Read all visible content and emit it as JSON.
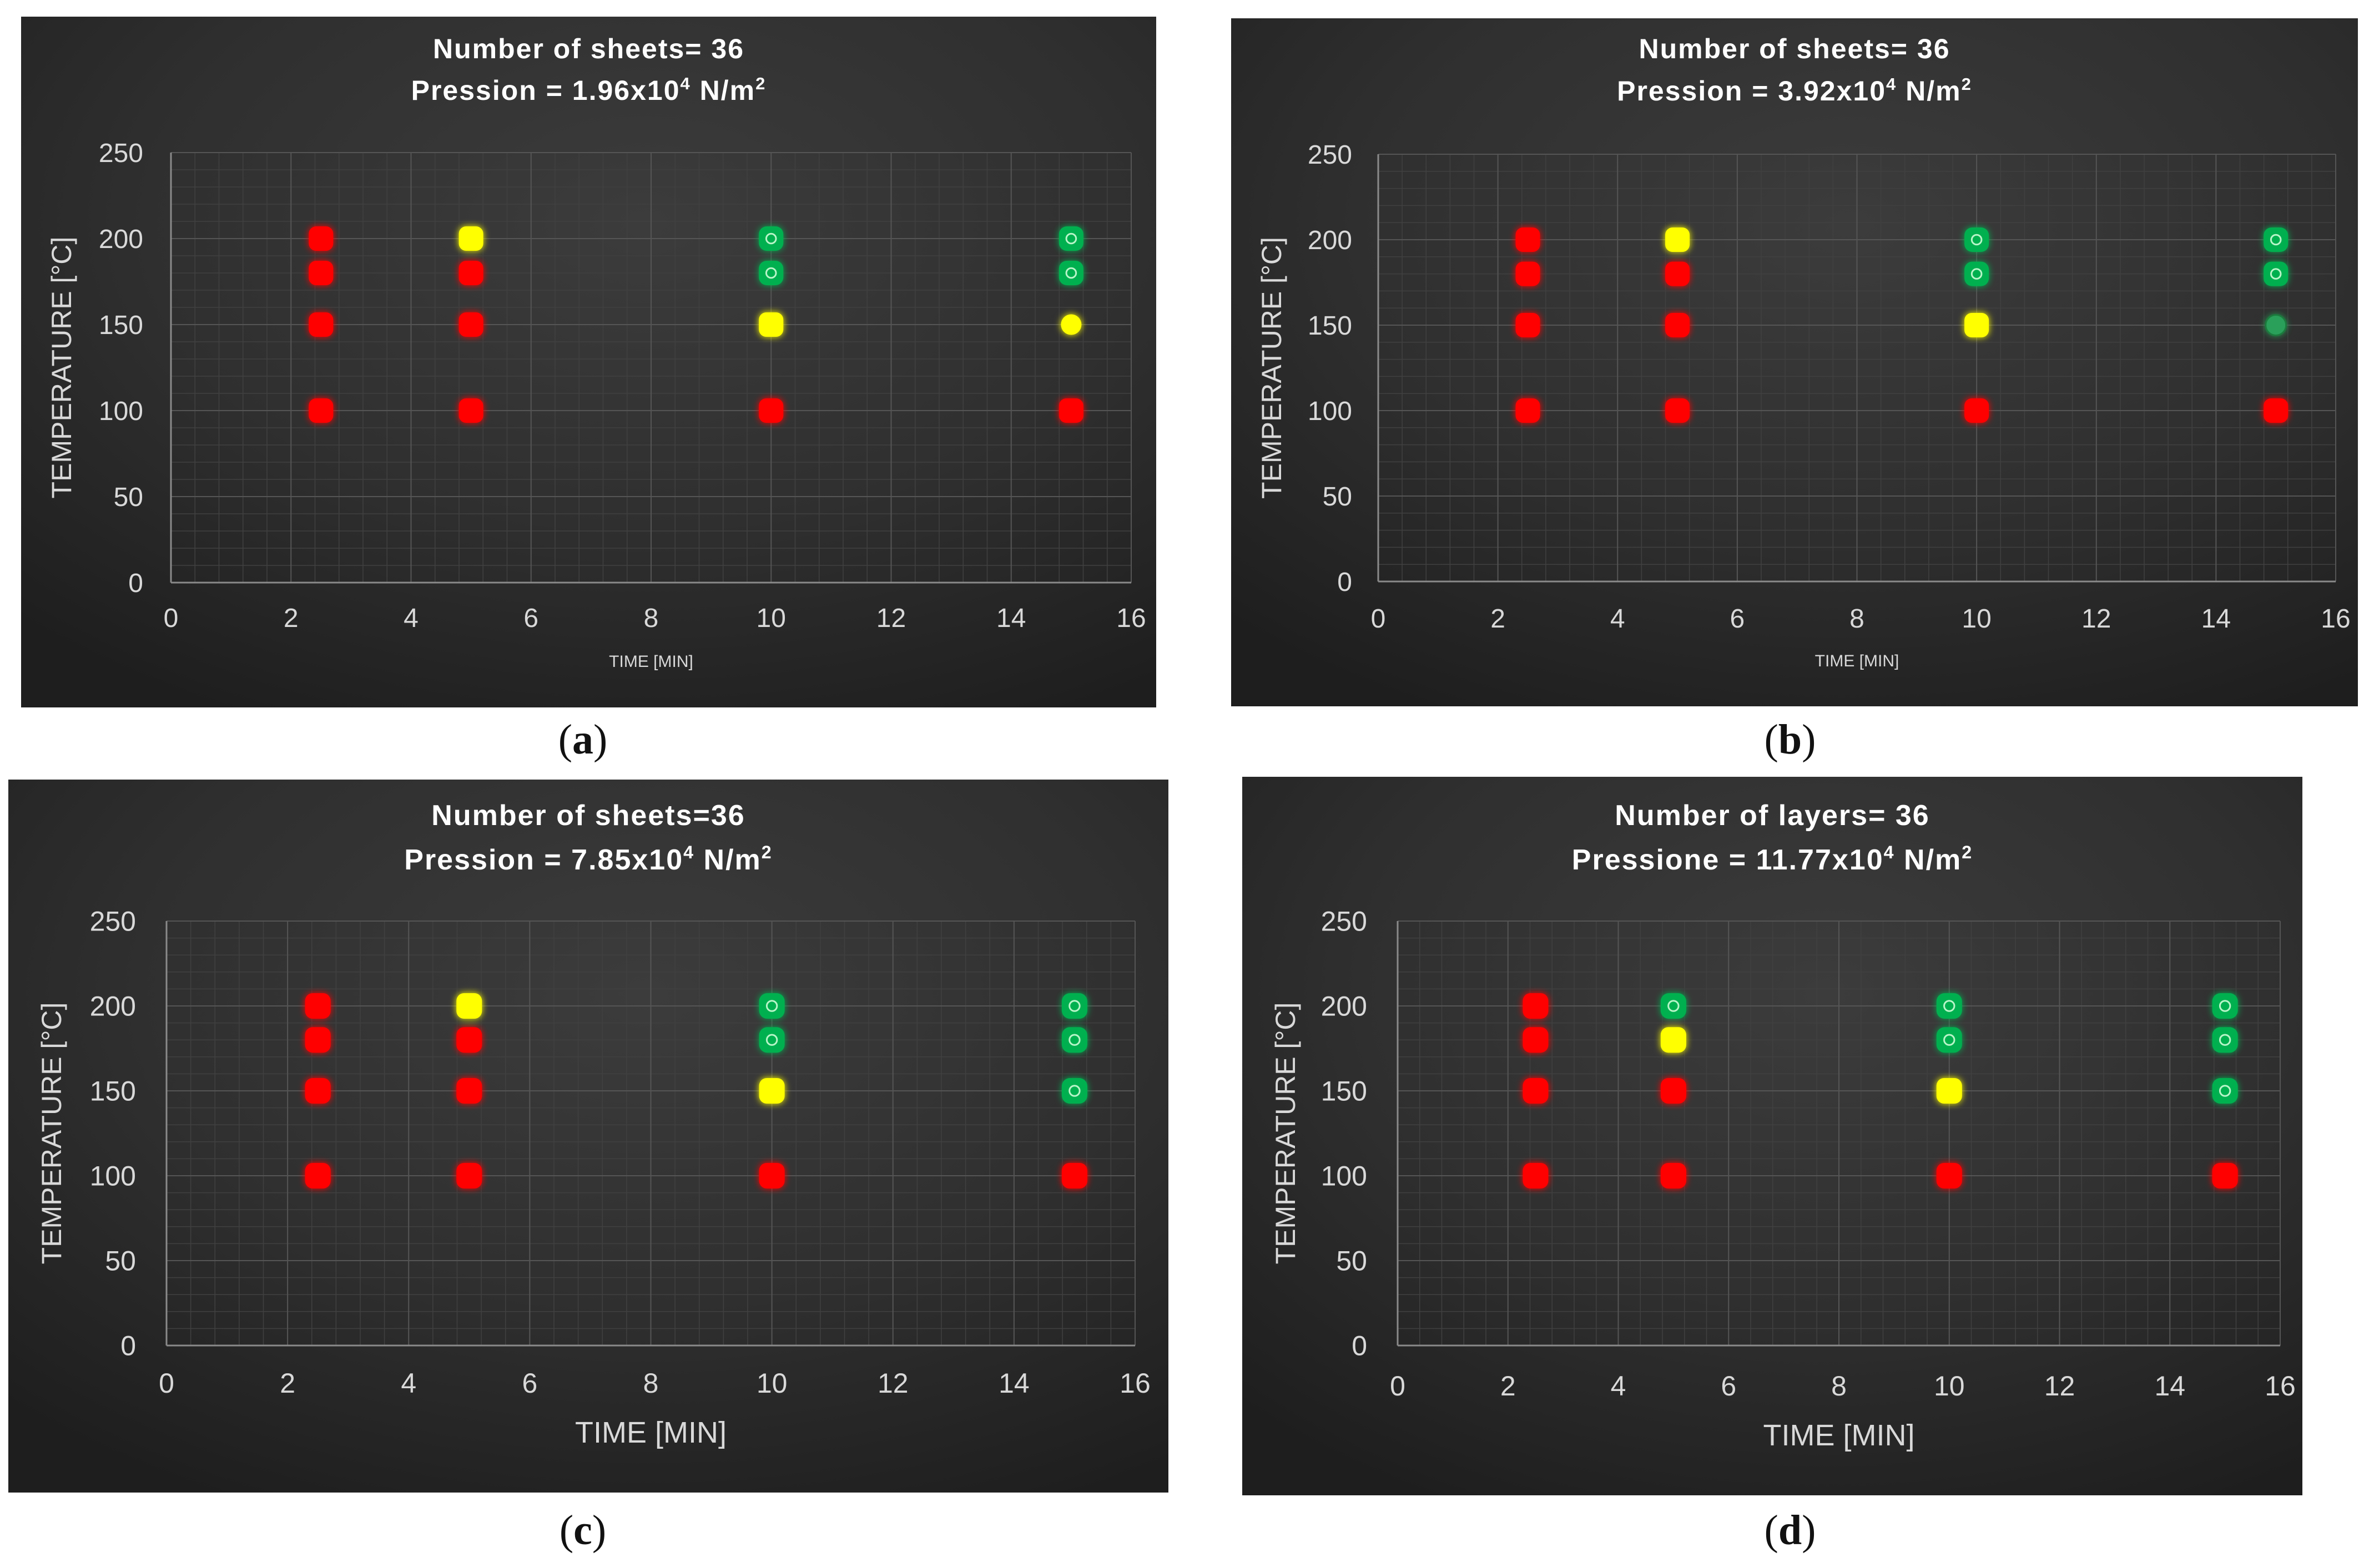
{
  "figure": {
    "panels": [
      {
        "id": "a",
        "caption_letter": "a",
        "caption_open": "(",
        "caption_close": ")"
      },
      {
        "id": "b",
        "caption_letter": "b",
        "caption_open": "(",
        "caption_close": ")"
      },
      {
        "id": "c",
        "caption_letter": "c",
        "caption_open": "(",
        "caption_close": ")"
      },
      {
        "id": "d",
        "caption_letter": "d",
        "caption_open": "(",
        "caption_close": ")"
      }
    ]
  },
  "colors": {
    "background_top": "#3c3c3c",
    "background_mid": "#2f2f2f",
    "background_bottom": "#1e1e1e",
    "axis_text": "#d9d9d9",
    "grid_major": "#555555",
    "grid_minor": "#404040",
    "red": "#ff0000",
    "yellow": "#ffff00",
    "green": "#00b050",
    "green_solid": "#2ca05a"
  },
  "chart_data": [
    {
      "type": "scatter",
      "panel": "a",
      "title_line1": "Number of sheets= 36",
      "title_line2_prefix": "Pression = 1.96x10",
      "title_line2_exp": "4",
      "title_line2_unit": " N/m",
      "title_line2_unit_exp": "2",
      "xlabel": "TIME [MIN]",
      "xlabel_style": "small",
      "ylabel": "TEMPERATURE [°C]",
      "xlim": [
        0,
        16
      ],
      "ylim": [
        0,
        250
      ],
      "xticks": [
        "0",
        "2",
        "4",
        "6",
        "8",
        "10",
        "12",
        "14",
        "16"
      ],
      "yticks": [
        "0",
        "50",
        "100",
        "150",
        "200",
        "250"
      ],
      "points": [
        {
          "x": 2.5,
          "y": 200,
          "color": "red"
        },
        {
          "x": 2.5,
          "y": 180,
          "color": "red"
        },
        {
          "x": 2.5,
          "y": 150,
          "color": "red"
        },
        {
          "x": 2.5,
          "y": 100,
          "color": "red"
        },
        {
          "x": 5,
          "y": 200,
          "color": "yellow"
        },
        {
          "x": 5,
          "y": 180,
          "color": "red"
        },
        {
          "x": 5,
          "y": 150,
          "color": "red"
        },
        {
          "x": 5,
          "y": 100,
          "color": "red"
        },
        {
          "x": 10,
          "y": 200,
          "color": "green"
        },
        {
          "x": 10,
          "y": 180,
          "color": "green"
        },
        {
          "x": 10,
          "y": 150,
          "color": "yellow"
        },
        {
          "x": 10,
          "y": 100,
          "color": "red"
        },
        {
          "x": 15,
          "y": 200,
          "color": "green"
        },
        {
          "x": 15,
          "y": 180,
          "color": "green"
        },
        {
          "x": 15,
          "y": 150,
          "color": "yellow_round"
        },
        {
          "x": 15,
          "y": 100,
          "color": "red"
        }
      ]
    },
    {
      "type": "scatter",
      "panel": "b",
      "title_line1": "Number of sheets= 36",
      "title_line2_prefix": "Pression = 3.92x10",
      "title_line2_exp": "4",
      "title_line2_unit": " N/m",
      "title_line2_unit_exp": "2",
      "xlabel": "TIME [MIN]",
      "xlabel_style": "small",
      "ylabel": "TEMPERATURE [°C]",
      "xlim": [
        0,
        16
      ],
      "ylim": [
        0,
        250
      ],
      "xticks": [
        "0",
        "2",
        "4",
        "6",
        "8",
        "10",
        "12",
        "14",
        "16"
      ],
      "yticks": [
        "0",
        "50",
        "100",
        "150",
        "200",
        "250"
      ],
      "points": [
        {
          "x": 2.5,
          "y": 200,
          "color": "red"
        },
        {
          "x": 2.5,
          "y": 180,
          "color": "red"
        },
        {
          "x": 2.5,
          "y": 150,
          "color": "red"
        },
        {
          "x": 2.5,
          "y": 100,
          "color": "red"
        },
        {
          "x": 5,
          "y": 200,
          "color": "yellow"
        },
        {
          "x": 5,
          "y": 180,
          "color": "red"
        },
        {
          "x": 5,
          "y": 150,
          "color": "red"
        },
        {
          "x": 5,
          "y": 100,
          "color": "red"
        },
        {
          "x": 10,
          "y": 200,
          "color": "green"
        },
        {
          "x": 10,
          "y": 180,
          "color": "green"
        },
        {
          "x": 10,
          "y": 150,
          "color": "yellow"
        },
        {
          "x": 10,
          "y": 100,
          "color": "red"
        },
        {
          "x": 15,
          "y": 200,
          "color": "green"
        },
        {
          "x": 15,
          "y": 180,
          "color": "green"
        },
        {
          "x": 15,
          "y": 150,
          "color": "green_round"
        },
        {
          "x": 15,
          "y": 100,
          "color": "red"
        }
      ]
    },
    {
      "type": "scatter",
      "panel": "c",
      "title_line1": "Number of sheets=36",
      "title_line2_prefix": "Pression = 7.85x10",
      "title_line2_exp": "4",
      "title_line2_unit": " N/m",
      "title_line2_unit_exp": "2",
      "xlabel": "TIME [MIN]",
      "xlabel_style": "large",
      "ylabel": "TEMPERATURE [°C]",
      "xlim": [
        0,
        16
      ],
      "ylim": [
        0,
        250
      ],
      "xticks": [
        "0",
        "2",
        "4",
        "6",
        "8",
        "10",
        "12",
        "14",
        "16"
      ],
      "yticks": [
        "0",
        "50",
        "100",
        "150",
        "200",
        "250"
      ],
      "points": [
        {
          "x": 2.5,
          "y": 200,
          "color": "red"
        },
        {
          "x": 2.5,
          "y": 180,
          "color": "red"
        },
        {
          "x": 2.5,
          "y": 150,
          "color": "red"
        },
        {
          "x": 2.5,
          "y": 100,
          "color": "red"
        },
        {
          "x": 5,
          "y": 200,
          "color": "yellow"
        },
        {
          "x": 5,
          "y": 180,
          "color": "red"
        },
        {
          "x": 5,
          "y": 150,
          "color": "red"
        },
        {
          "x": 5,
          "y": 100,
          "color": "red"
        },
        {
          "x": 10,
          "y": 200,
          "color": "green"
        },
        {
          "x": 10,
          "y": 180,
          "color": "green"
        },
        {
          "x": 10,
          "y": 150,
          "color": "yellow"
        },
        {
          "x": 10,
          "y": 100,
          "color": "red"
        },
        {
          "x": 15,
          "y": 200,
          "color": "green"
        },
        {
          "x": 15,
          "y": 180,
          "color": "green"
        },
        {
          "x": 15,
          "y": 150,
          "color": "green"
        },
        {
          "x": 15,
          "y": 100,
          "color": "red"
        }
      ]
    },
    {
      "type": "scatter",
      "panel": "d",
      "title_line1": "Number of layers= 36",
      "title_line2_prefix": "Pressione = 11.77x10",
      "title_line2_exp": "4",
      "title_line2_unit": " N/m",
      "title_line2_unit_exp": "2",
      "xlabel": "TIME [MIN]",
      "xlabel_style": "large",
      "ylabel": "TEMPERATURE [°C]",
      "xlim": [
        0,
        16
      ],
      "ylim": [
        0,
        250
      ],
      "xticks": [
        "0",
        "2",
        "4",
        "6",
        "8",
        "10",
        "12",
        "14",
        "16"
      ],
      "yticks": [
        "0",
        "50",
        "100",
        "150",
        "200",
        "250"
      ],
      "points": [
        {
          "x": 2.5,
          "y": 200,
          "color": "red"
        },
        {
          "x": 2.5,
          "y": 180,
          "color": "red"
        },
        {
          "x": 2.5,
          "y": 150,
          "color": "red"
        },
        {
          "x": 2.5,
          "y": 100,
          "color": "red"
        },
        {
          "x": 5,
          "y": 200,
          "color": "green"
        },
        {
          "x": 5,
          "y": 180,
          "color": "yellow"
        },
        {
          "x": 5,
          "y": 150,
          "color": "red"
        },
        {
          "x": 5,
          "y": 100,
          "color": "red"
        },
        {
          "x": 10,
          "y": 200,
          "color": "green"
        },
        {
          "x": 10,
          "y": 180,
          "color": "green"
        },
        {
          "x": 10,
          "y": 150,
          "color": "yellow"
        },
        {
          "x": 10,
          "y": 100,
          "color": "red"
        },
        {
          "x": 15,
          "y": 200,
          "color": "green"
        },
        {
          "x": 15,
          "y": 180,
          "color": "green"
        },
        {
          "x": 15,
          "y": 150,
          "color": "green"
        },
        {
          "x": 15,
          "y": 100,
          "color": "red"
        }
      ]
    }
  ]
}
